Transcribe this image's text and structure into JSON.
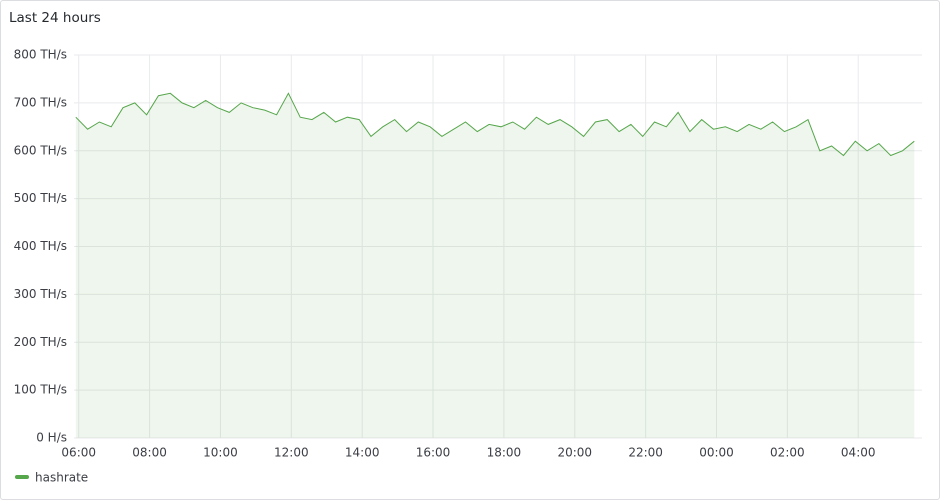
{
  "chart_data": {
    "type": "line",
    "title": "Last 24 hours",
    "x": [
      "05:55",
      "06:15",
      "06:35",
      "06:55",
      "07:15",
      "07:35",
      "07:55",
      "08:15",
      "08:35",
      "08:55",
      "09:15",
      "09:35",
      "09:55",
      "10:15",
      "10:35",
      "10:55",
      "11:15",
      "11:35",
      "11:55",
      "12:15",
      "12:35",
      "12:55",
      "13:15",
      "13:35",
      "13:55",
      "14:15",
      "14:35",
      "14:55",
      "15:15",
      "15:35",
      "15:55",
      "16:15",
      "16:35",
      "16:55",
      "17:15",
      "17:35",
      "17:55",
      "18:15",
      "18:35",
      "18:55",
      "19:15",
      "19:35",
      "19:55",
      "20:15",
      "20:35",
      "20:55",
      "21:15",
      "21:35",
      "21:55",
      "22:15",
      "22:35",
      "22:55",
      "23:15",
      "23:35",
      "23:55",
      "00:15",
      "00:35",
      "00:55",
      "01:15",
      "01:35",
      "01:55",
      "02:15",
      "02:35",
      "02:55",
      "03:15",
      "03:35",
      "03:55",
      "04:15",
      "04:35",
      "04:55",
      "05:15",
      "05:35"
    ],
    "series": [
      {
        "name": "hashrate",
        "color": "#56a64b",
        "values": [
          670,
          645,
          660,
          650,
          690,
          700,
          675,
          715,
          720,
          700,
          690,
          705,
          690,
          680,
          700,
          690,
          685,
          675,
          720,
          670,
          665,
          680,
          660,
          670,
          665,
          630,
          650,
          665,
          640,
          660,
          650,
          630,
          645,
          660,
          640,
          655,
          650,
          660,
          645,
          670,
          655,
          665,
          650,
          630,
          660,
          665,
          640,
          655,
          630,
          660,
          650,
          680,
          640,
          665,
          645,
          650,
          640,
          655,
          645,
          660,
          640,
          650,
          665,
          600,
          610,
          590,
          620,
          600,
          615,
          590,
          600,
          620
        ]
      }
    ],
    "xlim": [
      "05:52",
      "05:48"
    ],
    "xticks": [
      "06:00",
      "08:00",
      "10:00",
      "12:00",
      "14:00",
      "16:00",
      "18:00",
      "20:00",
      "22:00",
      "00:00",
      "02:00",
      "04:00"
    ],
    "ylim": [
      0,
      800
    ],
    "yticks": [
      {
        "value": 0,
        "label": "0 H/s"
      },
      {
        "value": 100,
        "label": "100 TH/s"
      },
      {
        "value": 200,
        "label": "200 TH/s"
      },
      {
        "value": 300,
        "label": "300 TH/s"
      },
      {
        "value": 400,
        "label": "400 TH/s"
      },
      {
        "value": 500,
        "label": "500 TH/s"
      },
      {
        "value": 600,
        "label": "600 TH/s"
      },
      {
        "value": 700,
        "label": "700 TH/s"
      },
      {
        "value": 800,
        "label": "800 TH/s"
      }
    ],
    "grid": true,
    "legend": "bottom-left"
  }
}
